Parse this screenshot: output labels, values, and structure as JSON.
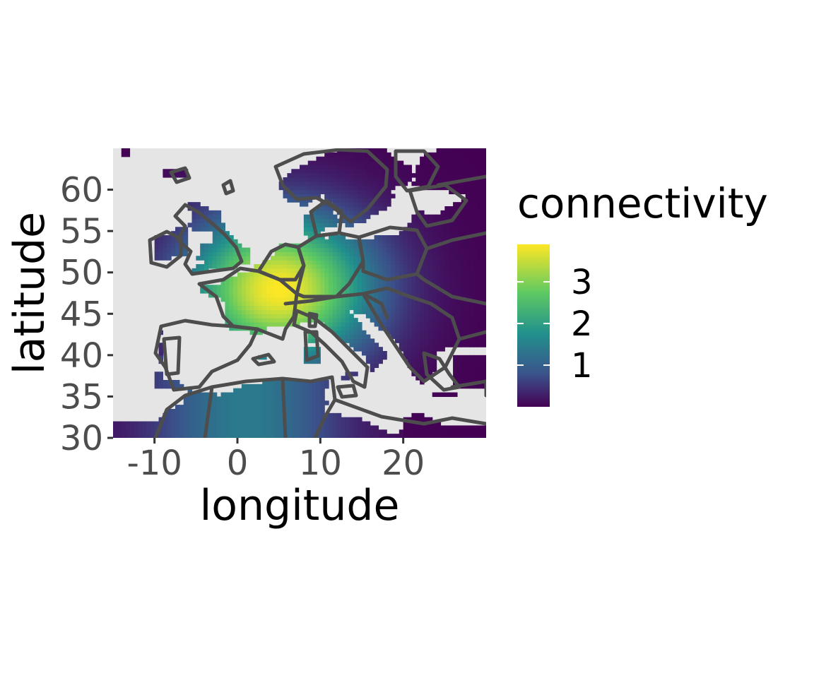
{
  "chart_data": {
    "type": "heatmap",
    "title": "",
    "xlabel": "longitude",
    "ylabel": "latitude",
    "xlim": [
      -15,
      30
    ],
    "ylim": [
      30,
      65
    ],
    "x_ticks": [
      -10,
      0,
      10,
      20
    ],
    "x_tick_labels": [
      "-10",
      "0",
      "10",
      "20"
    ],
    "y_ticks": [
      30,
      35,
      40,
      45,
      50,
      55,
      60
    ],
    "y_tick_labels": [
      "30",
      "35",
      "40",
      "45",
      "50",
      "55",
      "60"
    ],
    "background_color": "#e5e5e5",
    "border_color": "#4d4d4d",
    "colormap": "viridis",
    "legend": {
      "title": "connectivity",
      "placement": "right",
      "breaks": [
        1,
        2,
        3
      ],
      "break_labels": [
        "1",
        "2",
        "3"
      ],
      "range": [
        0,
        3.9
      ]
    },
    "description_of_field": "connectivity peaks around (5, 48) in France/Belgium/Netherlands and decays outward",
    "peak": {
      "lon": 5,
      "lat": 48,
      "value": 3.9
    }
  }
}
